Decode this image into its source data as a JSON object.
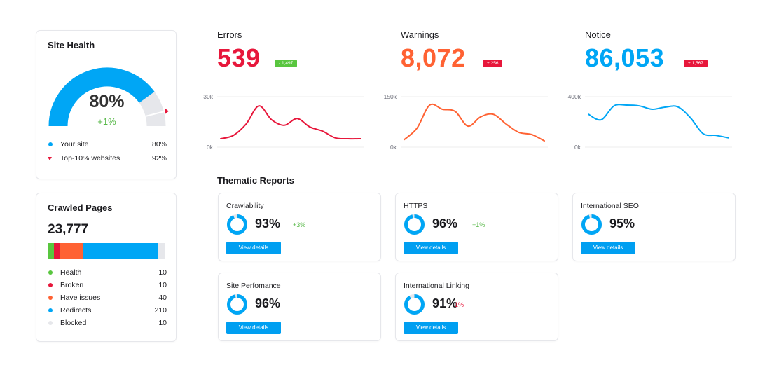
{
  "site_health": {
    "title": "Site Health",
    "value": "80%",
    "delta": "+1%",
    "gauge_fraction": 0.8,
    "benchmark_fraction": 0.92,
    "legend": [
      {
        "label": "Your site",
        "value": "80%",
        "color": "#00a6f5",
        "marker": "dot"
      },
      {
        "label": "Top-10% websites",
        "value": "92%",
        "color": "#e7173b",
        "marker": "triangle"
      }
    ]
  },
  "crawled_pages": {
    "title": "Crawled Pages",
    "total": "23,777",
    "items": [
      {
        "label": "Health",
        "value": "10",
        "color": "#59c63f"
      },
      {
        "label": "Broken",
        "value": "10",
        "color": "#e7173b"
      },
      {
        "label": "Have issues",
        "value": "40",
        "color": "#ff6233"
      },
      {
        "label": "Redirects",
        "value": "210",
        "color": "#00a6f5"
      },
      {
        "label": "Blocked",
        "value": "10",
        "color": "#e6e7eb"
      }
    ]
  },
  "metrics": [
    {
      "label": "Errors",
      "value": "539",
      "value_color": "#e7173b",
      "badge": "- 1,497",
      "badge_color": "#59c63f",
      "y_ticks": [
        "30k",
        "0k"
      ],
      "line_color": "#e7173b",
      "points": [
        0.1,
        0.18,
        0.45,
        0.88,
        0.55,
        0.42,
        0.58,
        0.38,
        0.28,
        0.12,
        0.1,
        0.1
      ]
    },
    {
      "label": "Warnings",
      "value": "8,072",
      "value_color": "#ff6233",
      "badge": "+ 256",
      "badge_color": "#e7173b",
      "y_ticks": [
        "150k",
        "0k"
      ],
      "line_color": "#ff6233",
      "points": [
        0.08,
        0.35,
        0.9,
        0.8,
        0.75,
        0.4,
        0.62,
        0.68,
        0.45,
        0.25,
        0.2,
        0.05
      ]
    },
    {
      "label": "Notice",
      "value": "86,053",
      "value_color": "#00a6f5",
      "badge": "+ 1,567",
      "badge_color": "#e7173b",
      "y_ticks": [
        "400k",
        "0k"
      ],
      "line_color": "#00a6f5",
      "points": [
        0.68,
        0.55,
        0.88,
        0.9,
        0.88,
        0.8,
        0.85,
        0.86,
        0.6,
        0.22,
        0.18,
        0.12
      ]
    }
  ],
  "thematic": {
    "title": "Thematic Reports",
    "button_label": "View details",
    "reports": [
      {
        "name": "Crawlability",
        "percent": "93%",
        "fraction": 0.93,
        "delta": "+3%",
        "delta_color": "#59b94a"
      },
      {
        "name": "HTTPS",
        "percent": "96%",
        "fraction": 0.96,
        "delta": "+1%",
        "delta_color": "#59b94a"
      },
      {
        "name": "International SEO",
        "percent": "95%",
        "fraction": 0.95,
        "delta": "",
        "delta_color": "#59b94a"
      },
      {
        "name": "Site Perfomance",
        "percent": "96%",
        "fraction": 0.96,
        "delta": "",
        "delta_color": "#59b94a"
      },
      {
        "name": "International Linking",
        "percent": "91%",
        "fraction": 0.91,
        "delta": "-1%",
        "delta_color": "#e7173b"
      }
    ]
  }
}
